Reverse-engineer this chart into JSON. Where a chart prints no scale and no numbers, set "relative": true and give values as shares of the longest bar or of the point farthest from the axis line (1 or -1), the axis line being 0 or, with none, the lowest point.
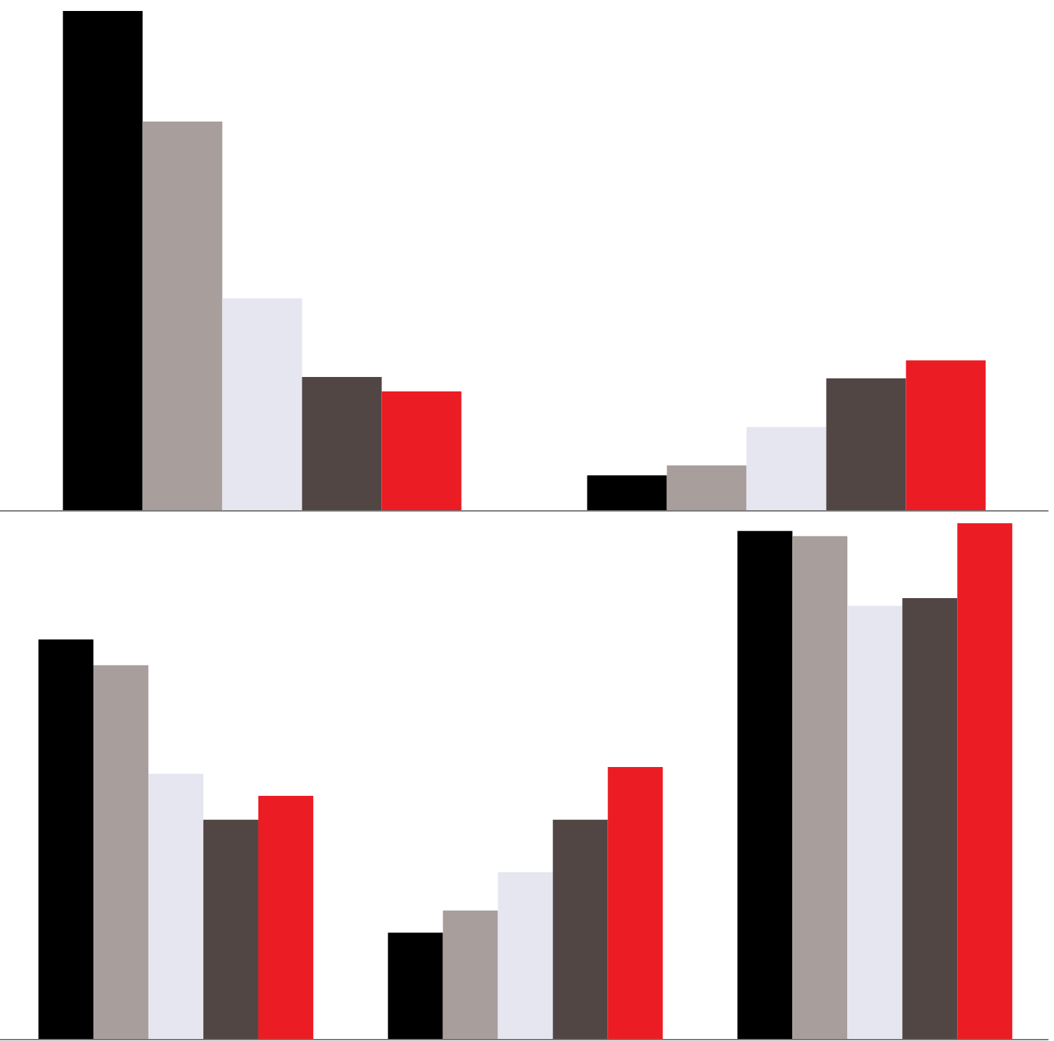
{
  "chart_data": [
    {
      "type": "bar",
      "relative": true,
      "categories": [
        null,
        null
      ],
      "series": [
        {
          "color": "#000000",
          "values": [
            1,
            0.071
          ]
        },
        {
          "color": "#a89e9b",
          "values": [
            0.779,
            0.091
          ]
        },
        {
          "color": "#e6e6f0",
          "values": [
            0.425,
            0.168
          ]
        },
        {
          "color": "#524644",
          "values": [
            0.268,
            0.265
          ]
        },
        {
          "color": "#ec1c24",
          "values": [
            0.239,
            0.301
          ]
        }
      ]
    },
    {
      "type": "bar",
      "relative": true,
      "categories": [
        null,
        null,
        null
      ],
      "series": [
        {
          "color": "#000000",
          "values": [
            0.775,
            0.207,
            0.985
          ]
        },
        {
          "color": "#a89e9b",
          "values": [
            0.725,
            0.25,
            0.975
          ]
        },
        {
          "color": "#e6e6f0",
          "values": [
            0.515,
            0.324,
            0.84
          ]
        },
        {
          "color": "#524644",
          "values": [
            0.426,
            0.426,
            0.855
          ]
        },
        {
          "color": "#ec1c24",
          "values": [
            0.472,
            0.528,
            1
          ]
        }
      ]
    }
  ]
}
